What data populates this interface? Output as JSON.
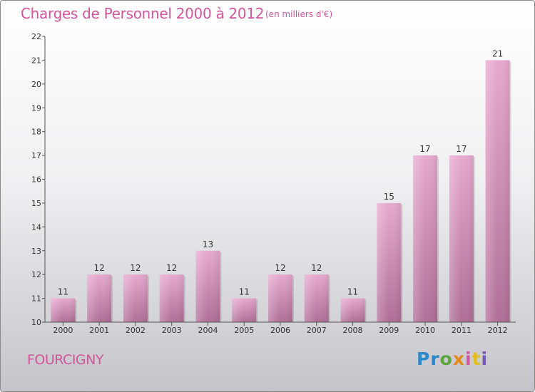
{
  "header": {
    "title": "Charges de Personnel 2000 à 2012",
    "subtitle": "(en milliers d'€)"
  },
  "footer": {
    "commune": "FOURCIGNY",
    "logo": [
      "Pr",
      "o",
      "x",
      "i",
      "t",
      "i"
    ]
  },
  "colors": {
    "accent": "#d0569a",
    "bar_top": "#e7a9cf",
    "bar_bottom": "#b06e97",
    "logo": [
      "#2a88cc",
      "#5aa83c",
      "#e48a1c",
      "#d0569a",
      "#e4be1c",
      "#7a58b8"
    ]
  },
  "chart_data": {
    "type": "bar",
    "title": "Charges de Personnel 2000 à 2012",
    "subtitle": "(en milliers d'€)",
    "categories": [
      "2000",
      "2001",
      "2002",
      "2003",
      "2004",
      "2005",
      "2006",
      "2007",
      "2008",
      "2009",
      "2010",
      "2011",
      "2012"
    ],
    "values": [
      11,
      12,
      12,
      12,
      13,
      11,
      12,
      12,
      11,
      15,
      17,
      17,
      21
    ],
    "ylim": [
      10,
      22
    ],
    "yticks": [
      10,
      11,
      12,
      13,
      14,
      15,
      16,
      17,
      18,
      19,
      20,
      21,
      22
    ],
    "grid": false,
    "legend": "none"
  }
}
